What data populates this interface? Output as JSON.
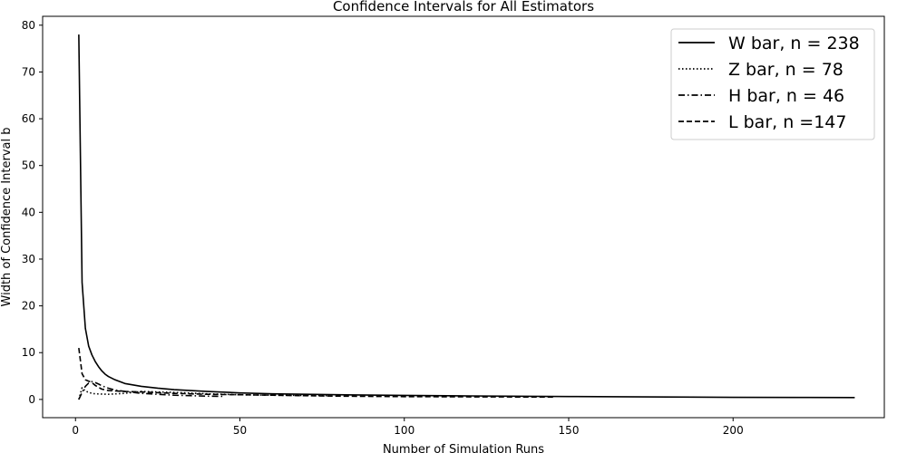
{
  "chart_data": {
    "type": "line",
    "title": "Confidence Intervals for All Estimators",
    "xlabel": "Number of Simulation Runs",
    "ylabel": "Width of Confidence Interval b",
    "xlim": [
      -10,
      246
    ],
    "ylim": [
      -3.9,
      81.9
    ],
    "xticks": [
      0,
      50,
      100,
      150,
      200
    ],
    "yticks": [
      0,
      10,
      20,
      30,
      40,
      50,
      60,
      70,
      80
    ],
    "grid": false,
    "legend_position": "top-right",
    "series": [
      {
        "name": "W bar, n = 238",
        "style": "solid",
        "x": [
          1,
          2,
          3,
          4,
          5,
          6,
          7,
          8,
          9,
          10,
          12,
          15,
          20,
          25,
          30,
          40,
          50,
          60,
          80,
          100,
          120,
          150,
          180,
          200,
          220,
          237
        ],
        "y": [
          78,
          25,
          15.2,
          11.4,
          9.5,
          8.1,
          7.0,
          6.1,
          5.4,
          4.9,
          4.2,
          3.4,
          2.8,
          2.4,
          2.1,
          1.7,
          1.4,
          1.2,
          1.0,
          0.85,
          0.75,
          0.62,
          0.52,
          0.45,
          0.42,
          0.4
        ]
      },
      {
        "name": "Z bar, n = 78",
        "style": "dotted",
        "x": [
          1,
          2,
          3,
          4,
          5,
          6,
          8,
          10,
          15,
          20,
          30,
          40,
          50,
          60,
          70,
          77
        ],
        "y": [
          0,
          2.5,
          1.8,
          1.5,
          1.3,
          1.2,
          1.15,
          1.1,
          1.3,
          1.7,
          1.5,
          1.2,
          1.0,
          0.9,
          0.85,
          0.8
        ]
      },
      {
        "name": "H bar, n = 46",
        "style": "dashdot",
        "x": [
          1,
          2,
          3,
          4,
          5,
          6,
          7,
          8,
          10,
          12,
          15,
          20,
          25,
          30,
          35,
          40,
          45
        ],
        "y": [
          0,
          1.5,
          2.8,
          3.5,
          3.8,
          3.6,
          3.3,
          2.9,
          2.4,
          2.0,
          1.7,
          1.3,
          1.1,
          0.9,
          0.8,
          0.7,
          0.65
        ]
      },
      {
        "name": "L bar, n =147",
        "style": "dashed",
        "x": [
          1,
          2,
          3,
          4,
          5,
          6,
          8,
          10,
          15,
          20,
          30,
          40,
          50,
          60,
          80,
          100,
          120,
          146
        ],
        "y": [
          11,
          5.5,
          4.2,
          3.9,
          3.6,
          3.0,
          2.2,
          1.9,
          1.7,
          1.6,
          1.3,
          1.1,
          1.0,
          0.9,
          0.7,
          0.6,
          0.55,
          0.5
        ]
      }
    ]
  }
}
